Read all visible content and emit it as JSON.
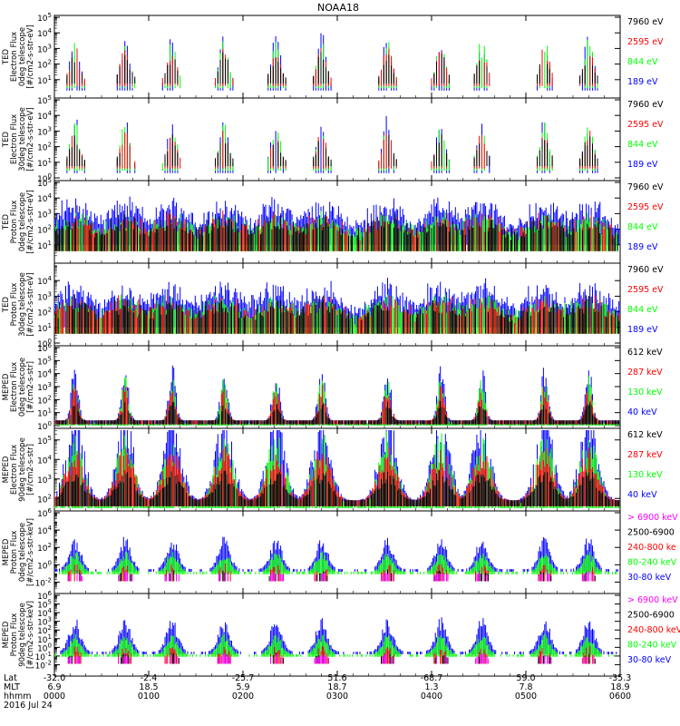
{
  "chart_data": {
    "type": "line",
    "title": "NOAA18",
    "colors": {
      "black": "#000000",
      "red": "#ff0000",
      "green": "#00ff00",
      "blue": "#0000ff",
      "magenta": "#ff00ff"
    },
    "panels": [
      {
        "ylabel_lines": [
          "TED",
          "Electron Flux",
          "0deg telescope",
          "[#/cm2-s-str-eV]"
        ],
        "y_log_range": [
          0,
          5
        ],
        "y_tick_exps": [
          1,
          2,
          3,
          4,
          5
        ],
        "legend": [
          {
            "label": "7960 eV",
            "color": "black"
          },
          {
            "label": "2595 eV",
            "color": "red"
          },
          {
            "label": "844 eV",
            "color": "green"
          },
          {
            "label": "189 eV",
            "color": "blue"
          }
        ]
      },
      {
        "ylabel_lines": [
          "TED",
          "Electron Flux",
          "30deg telescope",
          "[#/cm2-s-str-eV]"
        ],
        "y_log_range": [
          0,
          5
        ],
        "y_tick_exps": [
          0,
          1,
          2,
          3,
          4,
          5
        ],
        "legend": [
          {
            "label": "7960 eV",
            "color": "black"
          },
          {
            "label": "2595 eV",
            "color": "red"
          },
          {
            "label": "844 eV",
            "color": "green"
          },
          {
            "label": "189 eV",
            "color": "blue"
          }
        ]
      },
      {
        "ylabel_lines": [
          "TED",
          "Proton Flux",
          "0deg telescope",
          "[#/cm2-s-str-eV]"
        ],
        "y_log_range": [
          0,
          5
        ],
        "y_tick_exps": [
          1,
          2,
          3,
          4,
          5
        ],
        "legend": [
          {
            "label": "7960 eV",
            "color": "black"
          },
          {
            "label": "2595 eV",
            "color": "red"
          },
          {
            "label": "844 eV",
            "color": "green"
          },
          {
            "label": "189 eV",
            "color": "blue"
          }
        ]
      },
      {
        "ylabel_lines": [
          "TED",
          "Proton Flux",
          "30deg telescope",
          "[#/cm2-s-str-eV]"
        ],
        "y_log_range": [
          0,
          5
        ],
        "y_tick_exps": [
          0,
          1,
          2,
          3,
          4
        ],
        "legend": [
          {
            "label": "7960 eV",
            "color": "black"
          },
          {
            "label": "2595 eV",
            "color": "red"
          },
          {
            "label": "844 eV",
            "color": "green"
          },
          {
            "label": "189 eV",
            "color": "blue"
          }
        ]
      },
      {
        "ylabel_lines": [
          "MEPED",
          "Electron Flux",
          "0deg telescope",
          "[#/cm2-s-str]"
        ],
        "y_log_range": [
          0,
          6
        ],
        "y_tick_exps": [
          0,
          1,
          2,
          3,
          4,
          5,
          6
        ],
        "legend": [
          {
            "label": "612 keV",
            "color": "black"
          },
          {
            "label": "287 keV",
            "color": "red"
          },
          {
            "label": "130 keV",
            "color": "green"
          },
          {
            "label": "40 keV",
            "color": "blue"
          }
        ]
      },
      {
        "ylabel_lines": [
          "MEPED",
          "Electron Flux",
          "90deg telescope",
          "[#/cm2-s-str]"
        ],
        "y_log_range": [
          1.5,
          5.5
        ],
        "y_tick_exps": [
          2,
          3,
          4,
          5
        ],
        "legend": [
          {
            "label": "612 keV",
            "color": "black"
          },
          {
            "label": "287 keV",
            "color": "red"
          },
          {
            "label": "130 keV",
            "color": "green"
          },
          {
            "label": "40 keV",
            "color": "blue"
          }
        ]
      },
      {
        "ylabel_lines": [
          "MEPED",
          "Proton Flux",
          "0deg telescope",
          "[#/cm2-s-str-keV]"
        ],
        "y_log_range": [
          -3,
          6
        ],
        "y_tick_exps": [
          -2,
          0,
          2,
          4,
          6
        ],
        "legend": [
          {
            "label": "> 6900 keV",
            "color": "magenta"
          },
          {
            "label": "2500-6900",
            "color": "black"
          },
          {
            "label": "240-800 ke",
            "color": "red"
          },
          {
            "label": "80-240 keV",
            "color": "green"
          },
          {
            "label": "30-80 keV",
            "color": "blue"
          }
        ]
      },
      {
        "ylabel_lines": [
          "MEPED",
          "Proton Flux",
          "90deg telescope",
          "[#/cm2-s-str-keV]"
        ],
        "y_log_range": [
          -3,
          6
        ],
        "y_tick_exps": [
          -2,
          -1,
          0,
          1,
          2,
          3,
          4,
          5,
          6
        ],
        "legend": [
          {
            "label": "> 6900 keV",
            "color": "magenta"
          },
          {
            "label": "2500-6900",
            "color": "black"
          },
          {
            "label": "240-800 keV",
            "color": "red"
          },
          {
            "label": "80-240 keV",
            "color": "green"
          },
          {
            "label": "30-80 keV",
            "color": "blue"
          }
        ]
      }
    ],
    "x_axis": {
      "range_minutes": [
        0,
        360
      ],
      "ticks": [
        0,
        60,
        120,
        180,
        240,
        300,
        360
      ],
      "rows": [
        {
          "label": "Lat",
          "values": [
            "-32.0",
            "-2.4",
            "-25.7",
            "51.6",
            "-68.7",
            "59.0",
            "-35.3"
          ]
        },
        {
          "label": "MLT",
          "values": [
            "6.9",
            "18.5",
            "5.9",
            "18.7",
            "1.3",
            "7.8",
            "18.9"
          ]
        },
        {
          "label": "hhmm",
          "values": [
            "0000",
            "0100",
            "0200",
            "0300",
            "0400",
            "0500",
            "0600"
          ]
        }
      ],
      "date": "2016 Jul 24"
    }
  }
}
